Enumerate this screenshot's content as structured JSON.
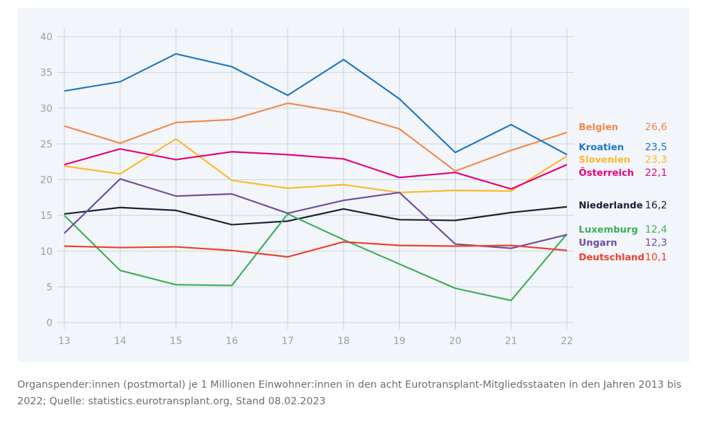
{
  "chart_data": {
    "type": "line",
    "title": "",
    "xlabel": "",
    "ylabel": "",
    "x": [
      "13",
      "14",
      "15",
      "16",
      "17",
      "18",
      "19",
      "20",
      "21",
      "22"
    ],
    "yticks": [
      "0",
      "5",
      "10",
      "15",
      "20",
      "25",
      "30",
      "35",
      "40"
    ],
    "ylim": [
      0,
      40
    ],
    "grid": true,
    "legend": "right",
    "series": [
      {
        "name": "Belgien",
        "end_label": "26,6",
        "color": "#f08a4b",
        "values": [
          27.5,
          25.1,
          28.0,
          28.4,
          30.7,
          29.4,
          27.1,
          21.2,
          24.1,
          26.6
        ]
      },
      {
        "name": "Kroatien",
        "end_label": "23,5",
        "color": "#1f78c1",
        "values": [
          32.4,
          33.7,
          37.6,
          35.8,
          31.8,
          36.8,
          31.3,
          23.8,
          27.7,
          23.5
        ]
      },
      {
        "name": "Slovenien",
        "end_label": "23,3",
        "color": "#fbb92d",
        "values": [
          21.9,
          20.8,
          25.7,
          19.9,
          18.8,
          19.3,
          18.2,
          18.5,
          18.4,
          23.3
        ]
      },
      {
        "name": "Österreich",
        "end_label": "22,1",
        "color": "#e5007d",
        "values": [
          22.1,
          24.3,
          22.8,
          23.9,
          23.5,
          22.9,
          20.3,
          21.0,
          18.7,
          22.1
        ]
      },
      {
        "name": "Niederlande",
        "end_label": "16,2",
        "color": "#1a1f36",
        "values": [
          15.2,
          16.1,
          15.7,
          13.7,
          14.2,
          15.9,
          14.4,
          14.3,
          15.4,
          16.2
        ]
      },
      {
        "name": "Luxemburg",
        "end_label": "12,4",
        "color": "#3fae5a",
        "values": [
          15.0,
          7.3,
          5.3,
          5.2,
          15.2,
          11.6,
          8.2,
          4.8,
          3.1,
          12.4
        ]
      },
      {
        "name": "Ungarn",
        "end_label": "12,3",
        "color": "#6e4da0",
        "values": [
          12.5,
          20.1,
          17.7,
          18.0,
          15.3,
          17.1,
          18.2,
          11.0,
          10.4,
          12.3
        ]
      },
      {
        "name": "Deutschland",
        "end_label": "10,1",
        "color": "#ee3f2a",
        "values": [
          10.7,
          10.5,
          10.6,
          10.1,
          9.2,
          11.3,
          10.8,
          10.7,
          10.8,
          10.1
        ]
      }
    ]
  },
  "caption": "Organspender:innen (postmortal) je 1 Millionen Einwohner:innen in den acht Eurotransplant-Mitgliedsstaaten in den Jahren 2013 bis 2022; Quelle: statistics.eurotransplant.org, Stand 08.02.2023"
}
